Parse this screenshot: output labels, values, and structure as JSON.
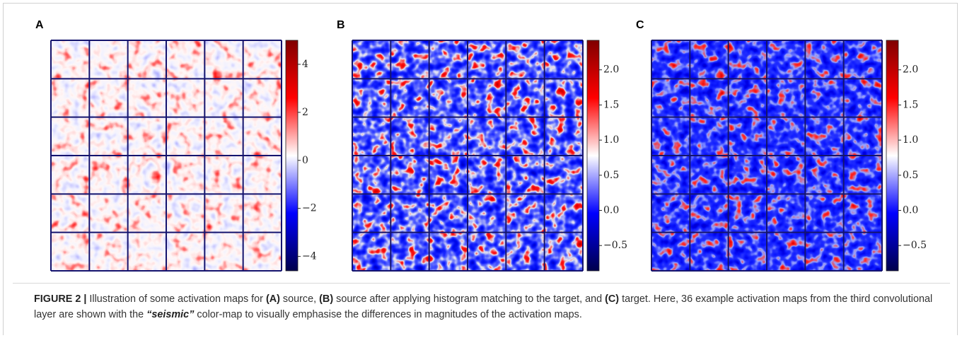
{
  "chart_data": [
    {
      "type": "heatmap",
      "title": "A",
      "ylim": [
        -4.6,
        5.0
      ],
      "yticks": [
        4,
        2,
        0,
        {
          "value": -2,
          "label": "−2"
        },
        {
          "value": -4,
          "label": "−4"
        }
      ]
    },
    {
      "type": "heatmap",
      "title": "B",
      "ylim": [
        -0.86,
        2.42
      ],
      "yticks": [
        {
          "value": 2.0,
          "label": "2.0"
        },
        {
          "value": 1.5,
          "label": "1.5"
        },
        {
          "value": 1.0,
          "label": "1.0"
        },
        {
          "value": 0.5,
          "label": "0.5"
        },
        {
          "value": 0.0,
          "label": "0.0"
        },
        {
          "value": -0.5,
          "label": "−0.5"
        }
      ]
    },
    {
      "type": "heatmap",
      "title": "C",
      "ylim": [
        -0.86,
        2.42
      ],
      "yticks": [
        {
          "value": 2.0,
          "label": "2.0"
        },
        {
          "value": 1.5,
          "label": "1.5"
        },
        {
          "value": 1.0,
          "label": "1.0"
        },
        {
          "value": 0.5,
          "label": "0.5"
        },
        {
          "value": 0.0,
          "label": "0.0"
        },
        {
          "value": -0.5,
          "label": "−0.5"
        }
      ]
    }
  ],
  "caption": [
    "FIGURE 2 |",
    " Illustration of some activation maps for ",
    "(A)",
    " source, ",
    "(B)",
    " source after applying histogram matching to the target, and ",
    "(C)",
    " target. Here, 36 example activation maps from the third convolutional layer are shown with the ",
    "“seismic”",
    " color-map to visually emphasise the differences in magnitudes of the activation maps."
  ]
}
